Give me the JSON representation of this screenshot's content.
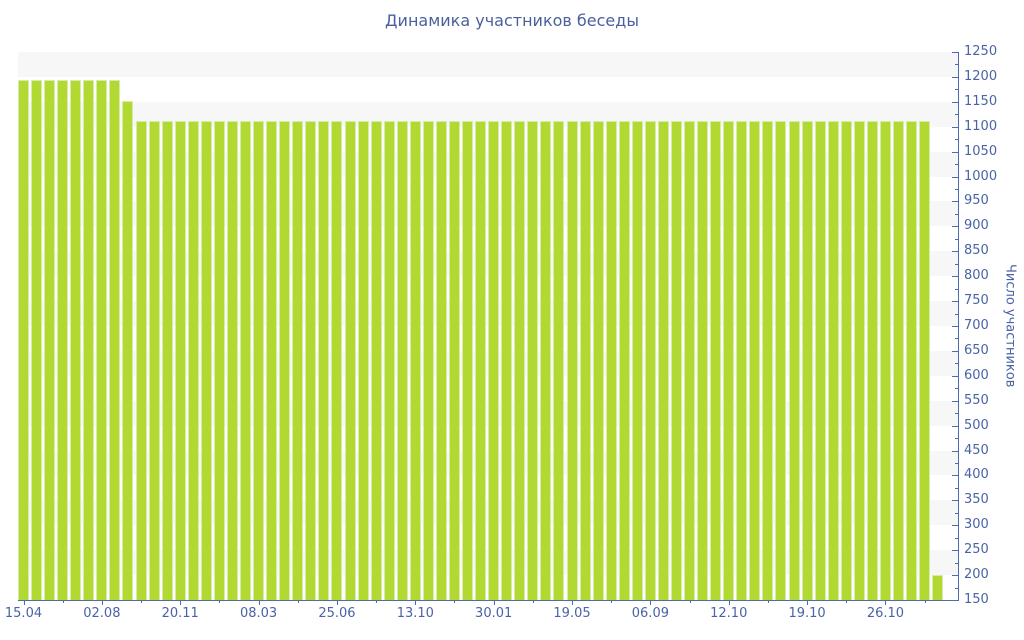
{
  "header": {
    "title": "Динамика участников беседы"
  },
  "colors": {
    "bar_fill": "#b2d832",
    "bar_border": "#d8ecaa",
    "band": "#f7f7f8",
    "axis_line": "#4d6bb0",
    "label_text": "#4a63a6",
    "title_text": "#4a5f9c",
    "background": "#ffffff"
  },
  "chart_data": {
    "type": "bar",
    "title": "Динамика участников беседы",
    "xlabel": "",
    "ylabel": "Число участников",
    "ylim": [
      150,
      1250
    ],
    "y_tick_interval": 50,
    "y_minor_tick_interval": 25,
    "y_tick_labels": [
      "1250",
      "1200",
      "1150",
      "1100",
      "1050",
      "1000",
      "950",
      "900",
      "850",
      "800",
      "750",
      "700",
      "650",
      "600",
      "550",
      "500",
      "450",
      "400",
      "350",
      "300",
      "250",
      "200",
      "150"
    ],
    "x_tick_labels": [
      "15.04",
      "02.08",
      "20.11",
      "08.03",
      "25.06",
      "13.10",
      "30.01",
      "19.05",
      "06.09",
      "12.10",
      "19.10",
      "26.10"
    ],
    "x_label_every": 6,
    "x_minor_tick_offset": 3,
    "legend": "none",
    "grid": "alternating-bands",
    "band_ranges": [
      [
        1200,
        1250
      ],
      [
        1100,
        1150
      ],
      [
        1000,
        1050
      ],
      [
        900,
        950
      ],
      [
        800,
        850
      ],
      [
        700,
        750
      ],
      [
        600,
        650
      ],
      [
        500,
        550
      ],
      [
        400,
        450
      ],
      [
        300,
        350
      ],
      [
        200,
        250
      ]
    ],
    "values": [
      1194,
      1194,
      1194,
      1194,
      1194,
      1194,
      1194,
      1194,
      1152,
      1112,
      1112,
      1112,
      1112,
      1112,
      1112,
      1112,
      1112,
      1112,
      1112,
      1112,
      1112,
      1112,
      1112,
      1112,
      1112,
      1112,
      1112,
      1112,
      1112,
      1112,
      1112,
      1112,
      1112,
      1112,
      1112,
      1112,
      1112,
      1112,
      1112,
      1112,
      1112,
      1112,
      1112,
      1112,
      1112,
      1112,
      1112,
      1112,
      1112,
      1112,
      1112,
      1112,
      1112,
      1112,
      1112,
      1112,
      1112,
      1112,
      1112,
      1112,
      1112,
      1112,
      1112,
      1112,
      1112,
      1112,
      1112,
      1112,
      1112,
      1112,
      200
    ]
  }
}
